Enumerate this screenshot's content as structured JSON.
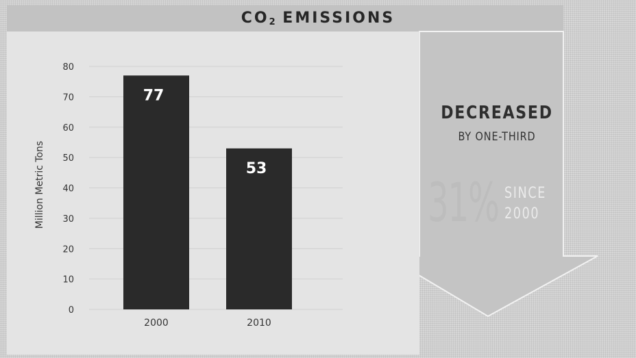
{
  "title": {
    "main": "CO",
    "subscript": "2",
    "rest": " EMISSIONS"
  },
  "highlight": {
    "headline": "DECREASED",
    "subline": "BY ONE-THIRD",
    "percent": "31%",
    "since_label": "SINCE",
    "since_year": "2000"
  },
  "colors": {
    "bar": "#2a2a2a",
    "panel": "#e6e6e6",
    "arrow": "#c4c4c4",
    "background": "#d6d6d6"
  },
  "chart_data": {
    "type": "bar",
    "title": "CO2 EMISSIONS",
    "categories": [
      "2000",
      "2010"
    ],
    "values": [
      77,
      53
    ],
    "data_labels": [
      "77",
      "53"
    ],
    "xlabel": "",
    "ylabel": "Million Metric Tons",
    "ylim": [
      0,
      80
    ],
    "yticks": [
      0,
      10,
      20,
      30,
      40,
      50,
      60,
      70,
      80
    ],
    "grid": true,
    "legend": "none"
  }
}
